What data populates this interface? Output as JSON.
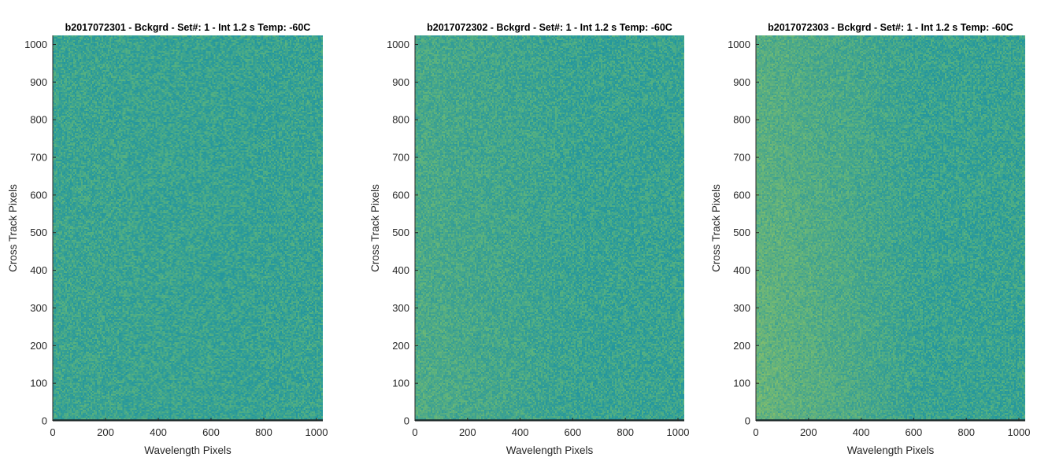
{
  "colors": {
    "base": "#2aa59e",
    "noise_low": "#1f8e9f",
    "noise_high": "#7fc165",
    "bright_bias": "#a6c95c",
    "axis": "#262626",
    "bottom_row": "#1c3b3a"
  },
  "chart_data": [
    {
      "type": "heatmap",
      "title": "b2017072301 - Bckgrd - Set#: 1 - Int 1.2 s Temp: -60C",
      "xlabel": "Wavelength Pixels",
      "ylabel": "Cross Track Pixels",
      "xlim": [
        0,
        1024
      ],
      "ylim": [
        0,
        1024
      ],
      "xticks": [
        0,
        200,
        400,
        600,
        800,
        1000
      ],
      "yticks": [
        0,
        100,
        200,
        300,
        400,
        500,
        600,
        700,
        800,
        900,
        1000
      ],
      "colormap": "parula",
      "gradient_strength": 0.05
    },
    {
      "type": "heatmap",
      "title": "b2017072302 - Bckgrd - Set#: 1 - Int 1.2 s Temp: -60C",
      "xlabel": "Wavelength Pixels",
      "ylabel": "Cross Track Pixels",
      "xlim": [
        0,
        1024
      ],
      "ylim": [
        0,
        1024
      ],
      "xticks": [
        0,
        200,
        400,
        600,
        800,
        1000
      ],
      "yticks": [
        0,
        100,
        200,
        300,
        400,
        500,
        600,
        700,
        800,
        900,
        1000
      ],
      "colormap": "parula",
      "gradient_strength": 0.25
    },
    {
      "type": "heatmap",
      "title": "b2017072303 - Bckgrd - Set#: 1 - Int 1.2 s Temp: -60C",
      "xlabel": "Wavelength Pixels",
      "ylabel": "Cross Track Pixels",
      "xlim": [
        0,
        1024
      ],
      "ylim": [
        0,
        1024
      ],
      "xticks": [
        0,
        200,
        400,
        600,
        800,
        1000
      ],
      "yticks": [
        0,
        100,
        200,
        300,
        400,
        500,
        600,
        700,
        800,
        900,
        1000
      ],
      "colormap": "parula",
      "gradient_strength": 0.5
    }
  ]
}
